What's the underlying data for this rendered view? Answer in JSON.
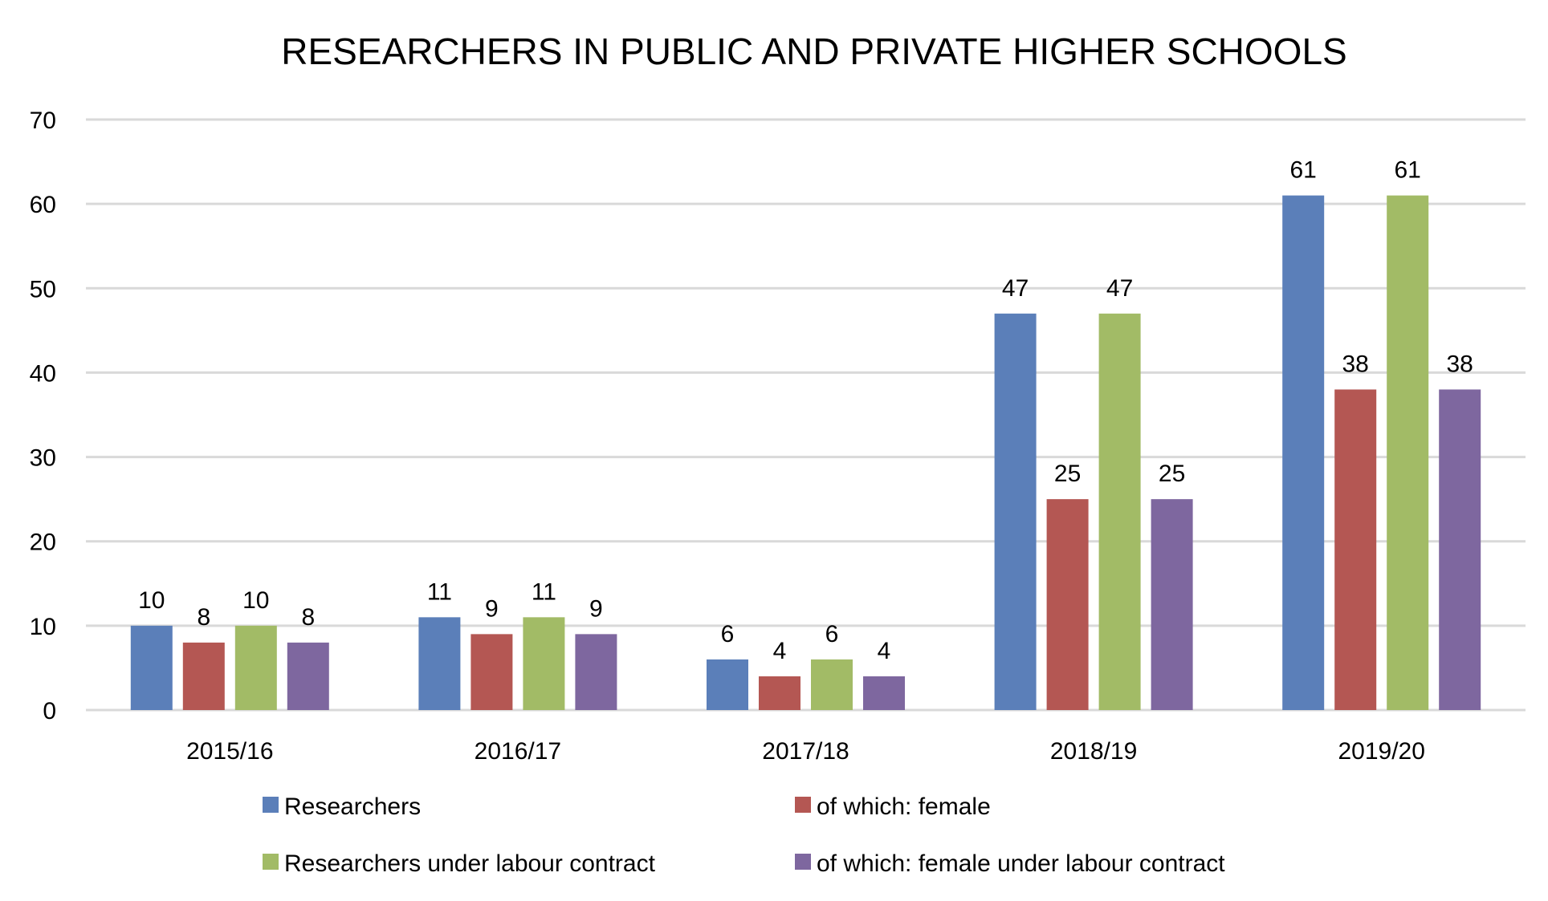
{
  "chart_data": {
    "type": "bar",
    "title": "RESEARCHERS IN PUBLIC AND PRIVATE HIGHER SCHOOLS",
    "xlabel": "",
    "ylabel": "",
    "categories": [
      "2015/16",
      "2016/17",
      "2017/18",
      "2018/19",
      "2019/20"
    ],
    "series": [
      {
        "name": "Researchers",
        "color": "#5b7fb9",
        "values": [
          10,
          11,
          6,
          47,
          61
        ]
      },
      {
        "name": "of which: female",
        "color": "#b45753",
        "values": [
          8,
          9,
          4,
          25,
          38
        ]
      },
      {
        "name": "Researchers under labour contract",
        "color": "#a2bb66",
        "values": [
          10,
          11,
          6,
          47,
          61
        ]
      },
      {
        "name": "of which: female under labour contract",
        "color": "#7e679f",
        "values": [
          8,
          9,
          4,
          25,
          38
        ]
      }
    ],
    "ylim": [
      0,
      70
    ],
    "yticks": [
      "0",
      "10",
      "20",
      "30",
      "40",
      "50",
      "60",
      "70"
    ],
    "grid": true,
    "data_labels": true,
    "legend_position": "bottom"
  }
}
